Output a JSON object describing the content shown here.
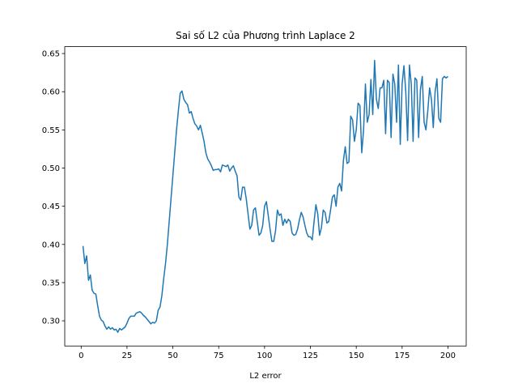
{
  "chart_data": {
    "type": "line",
    "title": "Sai số L2 của Phương trình Laplace 2",
    "xlabel": "L2 error",
    "x": [
      1,
      2,
      3,
      4,
      5,
      6,
      7,
      8,
      9,
      10,
      11,
      12,
      13,
      14,
      15,
      16,
      17,
      18,
      19,
      20,
      21,
      22,
      23,
      24,
      25,
      26,
      27,
      28,
      29,
      30,
      31,
      32,
      33,
      34,
      35,
      36,
      37,
      38,
      39,
      40,
      41,
      42,
      43,
      44,
      45,
      46,
      47,
      48,
      49,
      50,
      51,
      52,
      53,
      54,
      55,
      56,
      57,
      58,
      59,
      60,
      61,
      62,
      63,
      64,
      65,
      66,
      67,
      68,
      69,
      70,
      71,
      72,
      73,
      74,
      75,
      76,
      77,
      78,
      79,
      80,
      81,
      82,
      83,
      84,
      85,
      86,
      87,
      88,
      89,
      90,
      91,
      92,
      93,
      94,
      95,
      96,
      97,
      98,
      99,
      100,
      101,
      102,
      103,
      104,
      105,
      106,
      107,
      108,
      109,
      110,
      111,
      112,
      113,
      114,
      115,
      116,
      117,
      118,
      119,
      120,
      121,
      122,
      123,
      124,
      125,
      126,
      127,
      128,
      129,
      130,
      131,
      132,
      133,
      134,
      135,
      136,
      137,
      138,
      139,
      140,
      141,
      142,
      143,
      144,
      145,
      146,
      147,
      148,
      149,
      150,
      151,
      152,
      153,
      154,
      155,
      156,
      157,
      158,
      159,
      160,
      161,
      162,
      163,
      164,
      165,
      166,
      167,
      168,
      169,
      170,
      171,
      172,
      173,
      174,
      175,
      176,
      177,
      178,
      179,
      180,
      181,
      182,
      183,
      184,
      185,
      186,
      187,
      188,
      189,
      190,
      191,
      192,
      193,
      194,
      195,
      196,
      197,
      198,
      199,
      200
    ],
    "series": [
      {
        "color": "#1f77b4",
        "values": [
          0.398,
          0.375,
          0.385,
          0.353,
          0.36,
          0.34,
          0.336,
          0.335,
          0.32,
          0.306,
          0.301,
          0.299,
          0.293,
          0.289,
          0.292,
          0.289,
          0.291,
          0.288,
          0.289,
          0.285,
          0.29,
          0.288,
          0.29,
          0.292,
          0.297,
          0.303,
          0.306,
          0.306,
          0.306,
          0.31,
          0.311,
          0.312,
          0.31,
          0.307,
          0.305,
          0.302,
          0.299,
          0.296,
          0.298,
          0.297,
          0.3,
          0.314,
          0.318,
          0.333,
          0.355,
          0.375,
          0.4,
          0.43,
          0.46,
          0.49,
          0.52,
          0.55,
          0.575,
          0.598,
          0.601,
          0.59,
          0.586,
          0.583,
          0.572,
          0.574,
          0.565,
          0.558,
          0.555,
          0.55,
          0.556,
          0.546,
          0.535,
          0.52,
          0.512,
          0.508,
          0.503,
          0.497,
          0.498,
          0.498,
          0.499,
          0.495,
          0.504,
          0.503,
          0.502,
          0.504,
          0.496,
          0.5,
          0.503,
          0.496,
          0.49,
          0.462,
          0.458,
          0.475,
          0.475,
          0.46,
          0.44,
          0.42,
          0.425,
          0.445,
          0.448,
          0.43,
          0.412,
          0.415,
          0.425,
          0.45,
          0.456,
          0.438,
          0.42,
          0.404,
          0.404,
          0.418,
          0.445,
          0.438,
          0.44,
          0.425,
          0.433,
          0.428,
          0.433,
          0.43,
          0.415,
          0.412,
          0.413,
          0.42,
          0.432,
          0.442,
          0.436,
          0.425,
          0.415,
          0.41,
          0.41,
          0.406,
          0.43,
          0.452,
          0.44,
          0.412,
          0.422,
          0.445,
          0.442,
          0.428,
          0.43,
          0.445,
          0.462,
          0.465,
          0.45,
          0.475,
          0.48,
          0.47,
          0.51,
          0.528,
          0.506,
          0.508,
          0.568,
          0.563,
          0.535,
          0.55,
          0.585,
          0.582,
          0.52,
          0.55,
          0.61,
          0.56,
          0.57,
          0.616,
          0.57,
          0.641,
          0.59,
          0.578,
          0.605,
          0.605,
          0.615,
          0.545,
          0.615,
          0.612,
          0.54,
          0.623,
          0.61,
          0.56,
          0.635,
          0.531,
          0.61,
          0.634,
          0.6,
          0.536,
          0.635,
          0.61,
          0.535,
          0.618,
          0.615,
          0.54,
          0.603,
          0.62,
          0.56,
          0.55,
          0.575,
          0.605,
          0.59,
          0.553,
          0.6,
          0.617,
          0.565,
          0.56,
          0.617,
          0.62,
          0.618,
          0.62
        ]
      }
    ],
    "xlim": [
      -8.95,
      209.95
    ],
    "xticks": [
      0,
      25,
      50,
      75,
      100,
      125,
      150,
      175,
      200
    ],
    "ylim": [
      0.267,
      0.659
    ],
    "yticks": [
      {
        "value": 0.3,
        "label": "0.30"
      },
      0.35,
      {
        "value": 0.4,
        "label": "0.40"
      },
      0.45,
      {
        "value": 0.5,
        "label": "0.50"
      },
      0.55,
      {
        "value": 0.6,
        "label": "0.60"
      },
      0.65
    ]
  }
}
